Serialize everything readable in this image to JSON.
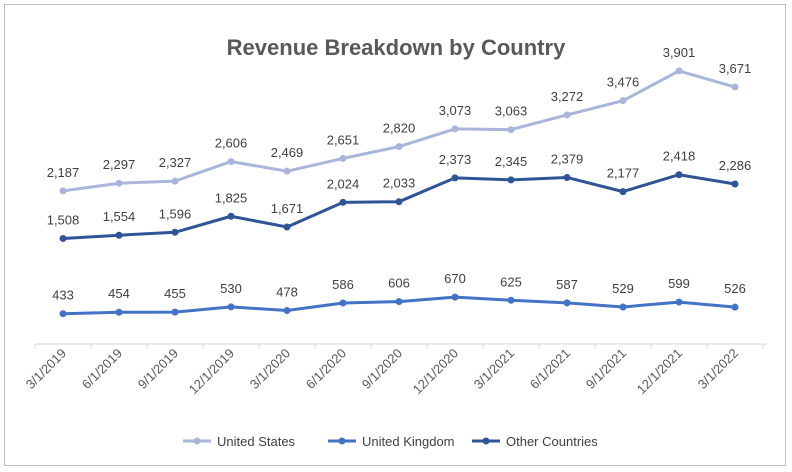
{
  "chart_data": {
    "type": "line",
    "title": "Revenue Breakdown by Country",
    "xlabel": "",
    "ylabel": "",
    "x": [
      "3/1/2019",
      "6/1/2019",
      "9/1/2019",
      "12/1/2019",
      "3/1/2020",
      "6/1/2020",
      "9/1/2020",
      "12/1/2020",
      "3/1/2021",
      "6/1/2021",
      "9/1/2021",
      "12/1/2021",
      "3/1/2022"
    ],
    "ylim": [
      0,
      4000
    ],
    "grid": false,
    "legend": "bottom",
    "series": [
      {
        "name": "United States",
        "color": "#a9b5db",
        "values": [
          2187,
          2297,
          2327,
          2606,
          2469,
          2651,
          2820,
          3073,
          3063,
          3272,
          3476,
          3901,
          3671
        ],
        "labels": [
          "2,187",
          "2,297",
          "2,327",
          "2,606",
          "2,469",
          "2,651",
          "2,820",
          "3,073",
          "3,063",
          "3,272",
          "3,476",
          "3,901",
          "3,671"
        ]
      },
      {
        "name": "United Kingdom",
        "color": "#4472c4",
        "values": [
          433,
          454,
          455,
          530,
          478,
          586,
          606,
          670,
          625,
          587,
          529,
          599,
          526
        ],
        "labels": [
          "433",
          "454",
          "455",
          "530",
          "478",
          "586",
          "606",
          "670",
          "625",
          "587",
          "529",
          "599",
          "526"
        ]
      },
      {
        "name": "Other Countries",
        "color": "#2f5597",
        "values": [
          1508,
          1554,
          1596,
          1825,
          1671,
          2024,
          2033,
          2373,
          2345,
          2379,
          2177,
          2418,
          2286
        ],
        "labels": [
          "1,508",
          "1,554",
          "1,596",
          "1,825",
          "1,671",
          "2,024",
          "2,033",
          "2,373",
          "2,345",
          "2,379",
          "2,177",
          "2,418",
          "2,286"
        ]
      }
    ]
  }
}
